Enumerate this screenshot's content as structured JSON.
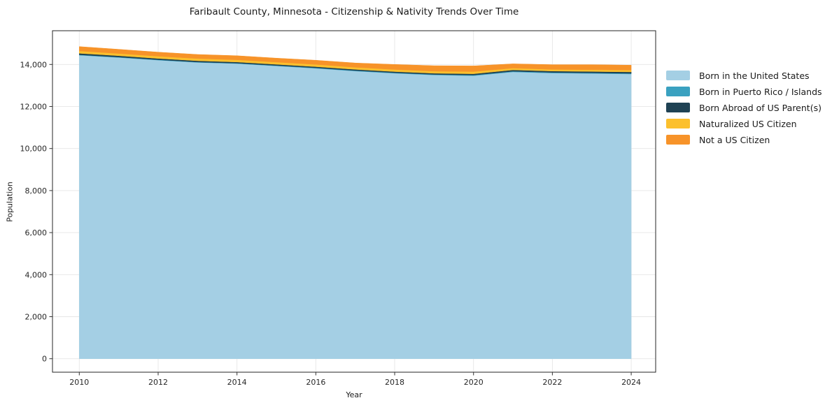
{
  "chart": {
    "title": "Faribault County, Minnesota - Citizenship & Nativity Trends Over Time",
    "xlabel": "Year",
    "ylabel": "Population"
  },
  "chart_data": {
    "type": "area",
    "stacked": true,
    "title": "Faribault County, Minnesota - Citizenship & Nativity Trends Over Time",
    "xlabel": "Year",
    "ylabel": "Population",
    "grid": true,
    "legend_position": "right",
    "x": [
      2010,
      2011,
      2012,
      2013,
      2014,
      2015,
      2016,
      2017,
      2018,
      2019,
      2020,
      2021,
      2022,
      2023,
      2024
    ],
    "series": [
      {
        "name": "Born in the United States",
        "color": "#a4cfe4",
        "values": [
          14440,
          14330,
          14205,
          14095,
          14040,
          13930,
          13815,
          13685,
          13580,
          13500,
          13465,
          13645,
          13590,
          13570,
          13545
        ]
      },
      {
        "name": "Born in Puerto Rico / Islands",
        "color": "#3aa1c0",
        "values": [
          20,
          20,
          20,
          20,
          20,
          20,
          25,
          25,
          25,
          25,
          30,
          30,
          30,
          30,
          30
        ]
      },
      {
        "name": "Born Abroad of US Parent(s)",
        "color": "#1f4254",
        "values": [
          70,
          65,
          60,
          60,
          55,
          55,
          55,
          55,
          55,
          55,
          60,
          65,
          65,
          65,
          70
        ]
      },
      {
        "name": "Naturalized US Citizen",
        "color": "#fcc02d",
        "values": [
          110,
          105,
          105,
          105,
          105,
          105,
          105,
          100,
          100,
          100,
          105,
          85,
          80,
          85,
          85
        ]
      },
      {
        "name": "Not a US Citizen",
        "color": "#f79329",
        "values": [
          210,
          200,
          195,
          195,
          195,
          190,
          200,
          205,
          240,
          260,
          270,
          205,
          225,
          240,
          235
        ]
      }
    ],
    "xticks": [
      2010,
      2012,
      2014,
      2016,
      2018,
      2020,
      2022,
      2024
    ],
    "xtick_labels": [
      "2010",
      "2012",
      "2014",
      "2016",
      "2018",
      "2020",
      "2022",
      "2024"
    ],
    "yticks": [
      0,
      2000,
      4000,
      6000,
      8000,
      10000,
      12000,
      14000
    ],
    "ytick_labels": [
      "0",
      "2,000",
      "4,000",
      "6,000",
      "8,000",
      "10,000",
      "12,000",
      "14,000"
    ],
    "xlim": [
      2009.32,
      2024.62
    ],
    "ylim": [
      -641,
      15604
    ],
    "colors": {
      "gridline": "#e6e6e6",
      "spine": "#262626",
      "tick": "#333333",
      "tick_label": "#262626"
    }
  }
}
